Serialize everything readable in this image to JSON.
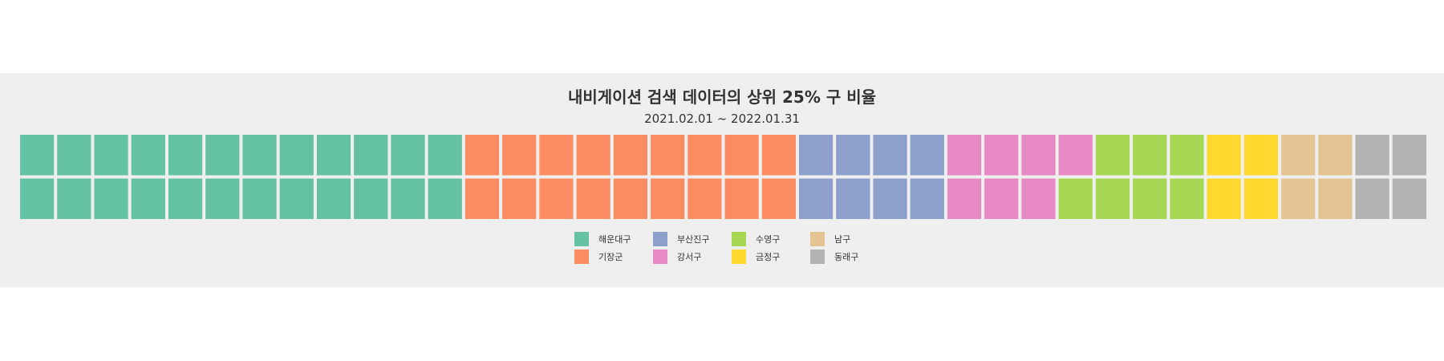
{
  "chart_data": {
    "type": "waffle",
    "title": "내비게이션 검색 데이터의 상위 25% 구 비율",
    "subtitle": "2021.02.01 ~ 2022.01.31",
    "rows": 2,
    "legend_position": "bottom",
    "categories": [
      "해운대구",
      "기장군",
      "부산진구",
      "강서구",
      "수영구",
      "금정구",
      "남구",
      "동래구"
    ],
    "values": [
      24,
      18,
      8,
      7,
      7,
      4,
      4,
      4
    ],
    "colors": [
      "#66c2a5",
      "#fc8d62",
      "#8da0cb",
      "#e78ac3",
      "#a6d854",
      "#ffd92f",
      "#e5c494",
      "#b3b3b3"
    ]
  }
}
